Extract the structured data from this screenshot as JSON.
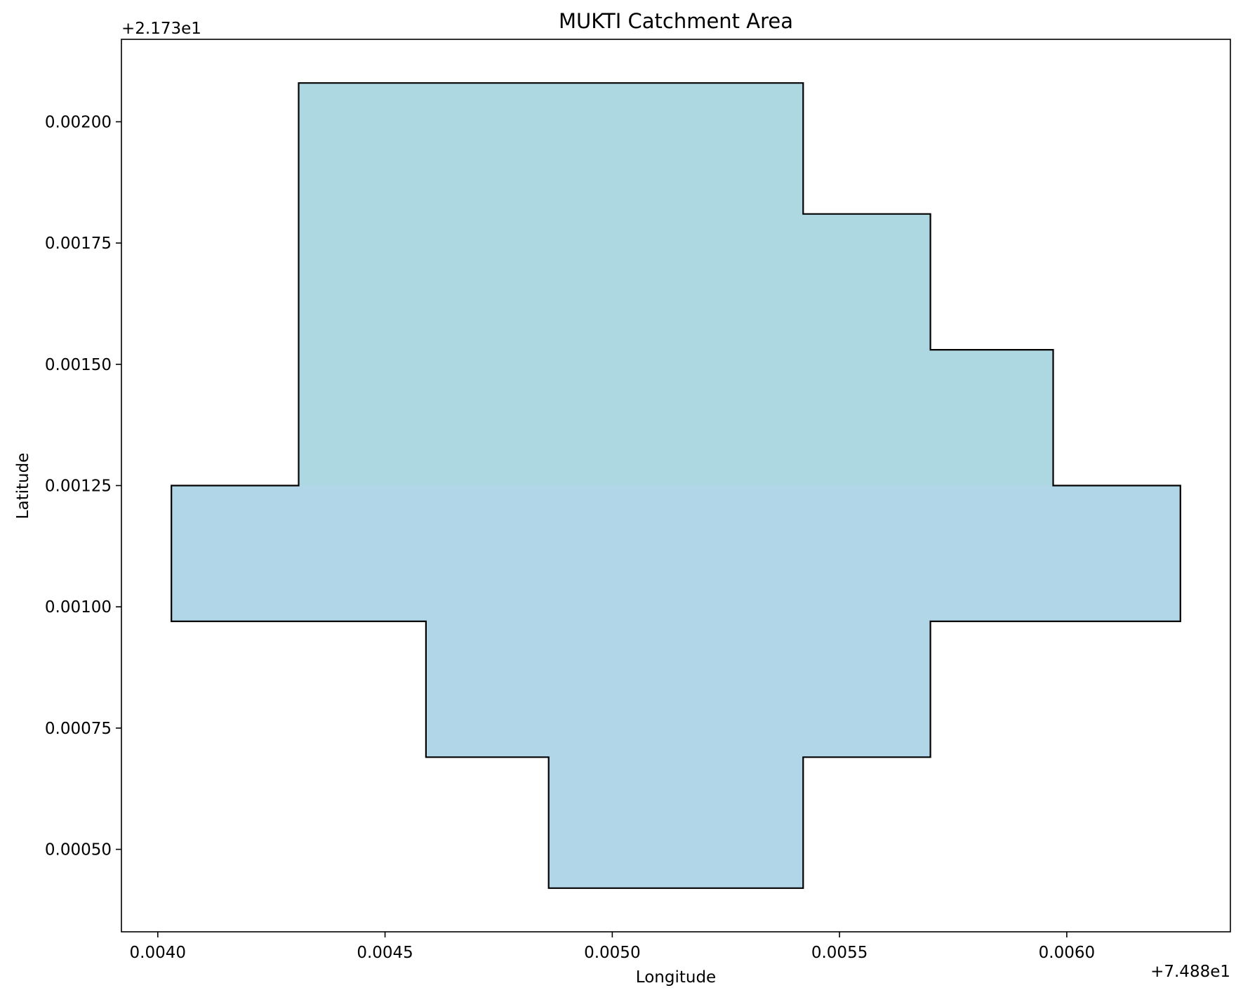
{
  "chart_data": {
    "type": "area",
    "title": "MUKTI Catchment Area",
    "xlabel": "Longitude",
    "ylabel": "Latitude",
    "x_offset_label": "+7.488e1",
    "y_offset_label": "+2.173e1",
    "xlim": [
      0.00392,
      0.00636
    ],
    "ylim": [
      0.00033,
      0.00217
    ],
    "x_ticks": [
      0.004,
      0.0045,
      0.005,
      0.0055,
      0.006
    ],
    "x_tick_labels": [
      "0.0040",
      "0.0045",
      "0.0050",
      "0.0055",
      "0.0060"
    ],
    "y_ticks": [
      0.0005,
      0.00075,
      0.001,
      0.00125,
      0.0015,
      0.00175,
      0.002
    ],
    "y_tick_labels": [
      "0.00050",
      "0.00075",
      "0.00100",
      "0.00125",
      "0.00150",
      "0.00175",
      "0.00200"
    ],
    "grid": false,
    "colors": {
      "fill_upper": "#add8e2",
      "fill_lower": "#b1d6e8",
      "edge": "#000000"
    },
    "polygons": [
      {
        "name": "",
        "fill": "fill_upper",
        "points": [
          [
            0.00431,
            0.00208
          ],
          [
            0.00542,
            0.00208
          ],
          [
            0.00542,
            0.00181
          ],
          [
            0.0057,
            0.00181
          ],
          [
            0.0057,
            0.00153
          ],
          [
            0.00597,
            0.00153
          ],
          [
            0.00597,
            0.00125
          ],
          [
            0.00431,
            0.00125
          ]
        ]
      },
      {
        "name": "",
        "fill": "fill_lower",
        "points": [
          [
            0.00403,
            0.00125
          ],
          [
            0.00625,
            0.00125
          ],
          [
            0.00625,
            0.00097
          ],
          [
            0.0057,
            0.00097
          ],
          [
            0.0057,
            0.00069
          ],
          [
            0.00542,
            0.00069
          ],
          [
            0.00542,
            0.00042
          ],
          [
            0.00486,
            0.00042
          ],
          [
            0.00486,
            0.00069
          ],
          [
            0.00459,
            0.00069
          ],
          [
            0.00459,
            0.00097
          ],
          [
            0.00403,
            0.00097
          ]
        ]
      }
    ],
    "outline": [
      [
        0.00431,
        0.00208
      ],
      [
        0.00542,
        0.00208
      ],
      [
        0.00542,
        0.00181
      ],
      [
        0.0057,
        0.00181
      ],
      [
        0.0057,
        0.00153
      ],
      [
        0.00597,
        0.00153
      ],
      [
        0.00597,
        0.00125
      ],
      [
        0.00625,
        0.00125
      ],
      [
        0.00625,
        0.00097
      ],
      [
        0.0057,
        0.00097
      ],
      [
        0.0057,
        0.00069
      ],
      [
        0.00542,
        0.00069
      ],
      [
        0.00542,
        0.00042
      ],
      [
        0.00486,
        0.00042
      ],
      [
        0.00486,
        0.00069
      ],
      [
        0.00459,
        0.00069
      ],
      [
        0.00459,
        0.00097
      ],
      [
        0.00403,
        0.00097
      ],
      [
        0.00403,
        0.00125
      ],
      [
        0.00431,
        0.00125
      ]
    ]
  }
}
